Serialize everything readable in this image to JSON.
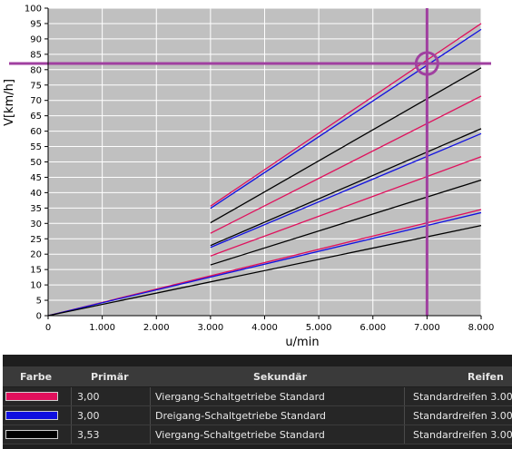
{
  "chart_data": {
    "type": "line",
    "xlabel": "u/min",
    "ylabel": "V[km/h]",
    "xlim": [
      0,
      8000
    ],
    "ylim": [
      0,
      100
    ],
    "x_ticks": [
      "0",
      "1.000",
      "2.000",
      "3.000",
      "4.000",
      "5.000",
      "6.000",
      "7.000",
      "8.000"
    ],
    "y_ticks": [
      "0",
      "5",
      "10",
      "15",
      "20",
      "25",
      "30",
      "35",
      "40",
      "45",
      "50",
      "55",
      "60",
      "65",
      "70",
      "75",
      "80",
      "85",
      "90",
      "95",
      "100"
    ],
    "grid": true,
    "marker": {
      "x": 7000,
      "y": 82
    },
    "series": [
      {
        "color": "#e0105c",
        "segments": [
          {
            "x": [
              0,
              8000
            ],
            "y": [
              0,
              34.5
            ]
          },
          {
            "x": [
              3000,
              8000
            ],
            "y": [
              19.4,
              51.7
            ]
          },
          {
            "x": [
              3000,
              8000
            ],
            "y": [
              26.8,
              71.4
            ]
          },
          {
            "x": [
              3000,
              8000
            ],
            "y": [
              35.6,
              95.0
            ]
          }
        ]
      },
      {
        "color": "#1010e0",
        "segments": [
          {
            "x": [
              0,
              8000
            ],
            "y": [
              0,
              33.5
            ]
          },
          {
            "x": [
              3000,
              8000
            ],
            "y": [
              22.2,
              59.2
            ]
          },
          {
            "x": [
              3000,
              8000
            ],
            "y": [
              34.9,
              93.1
            ]
          }
        ]
      },
      {
        "color": "#000000",
        "segments": [
          {
            "x": [
              0,
              8000
            ],
            "y": [
              0,
              29.3
            ]
          },
          {
            "x": [
              3000,
              8000
            ],
            "y": [
              16.5,
              44.1
            ]
          },
          {
            "x": [
              3000,
              8000
            ],
            "y": [
              22.8,
              60.8
            ]
          },
          {
            "x": [
              3000,
              8000
            ],
            "y": [
              30.2,
              80.6
            ]
          }
        ]
      }
    ]
  },
  "table": {
    "headers": {
      "color": "Farbe",
      "primary": "Primär",
      "secondary": "Sekundär",
      "tires": "Reifen"
    },
    "rows": [
      {
        "color": "#e0105c",
        "primary": "3,00",
        "secondary": "Viergang-Schaltgetriebe Standard",
        "tires": "Standardreifen 3.00"
      },
      {
        "color": "#1010e0",
        "primary": "3,00",
        "secondary": "Dreigang-Schaltgetriebe Standard",
        "tires": "Standardreifen 3.00"
      },
      {
        "color": "#000000",
        "primary": "3,53",
        "secondary": "Viergang-Schaltgetriebe Standard",
        "tires": "Standardreifen 3.00"
      }
    ]
  }
}
